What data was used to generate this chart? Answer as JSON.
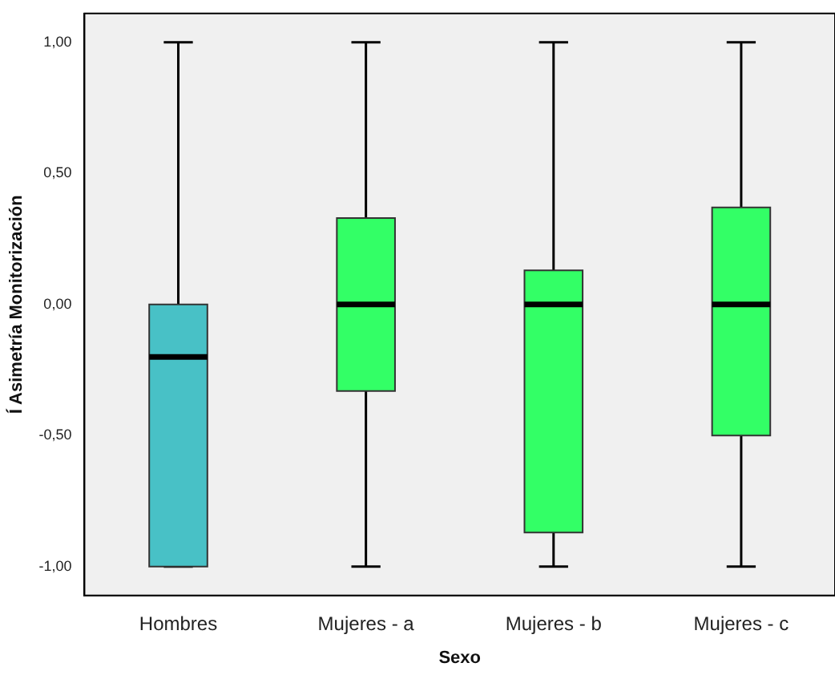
{
  "chart_data": {
    "type": "box",
    "xlabel": "Sexo",
    "ylabel": "Í Asimetría Monitorización",
    "categories": [
      "Hombres",
      "Mujeres - a",
      "Mujeres - b",
      "Mujeres - c"
    ],
    "colors": [
      "#48c1c6",
      "#33ff66",
      "#33ff66",
      "#33ff66"
    ],
    "boxes": [
      {
        "low": -1,
        "q1": -1,
        "median": -0.2,
        "q3": 0,
        "high": 1
      },
      {
        "low": -1,
        "q1": -0.33,
        "median": 0,
        "q3": 0.33,
        "high": 1
      },
      {
        "low": -1,
        "q1": -0.87,
        "median": 0,
        "q3": 0.13,
        "high": 1
      },
      {
        "low": -1,
        "q1": -0.5,
        "median": 0,
        "q3": 0.37,
        "high": 1
      }
    ],
    "ylim": [
      -1.11,
      1.11
    ],
    "yticks": [
      {
        "value": -1,
        "label": "-1,00"
      },
      {
        "value": -0.5,
        "label": "-0,50"
      },
      {
        "value": 0,
        "label": "0,00"
      },
      {
        "value": 0.5,
        "label": "0,50"
      },
      {
        "value": 1,
        "label": "1,00"
      }
    ],
    "grid": false,
    "legend": false
  }
}
